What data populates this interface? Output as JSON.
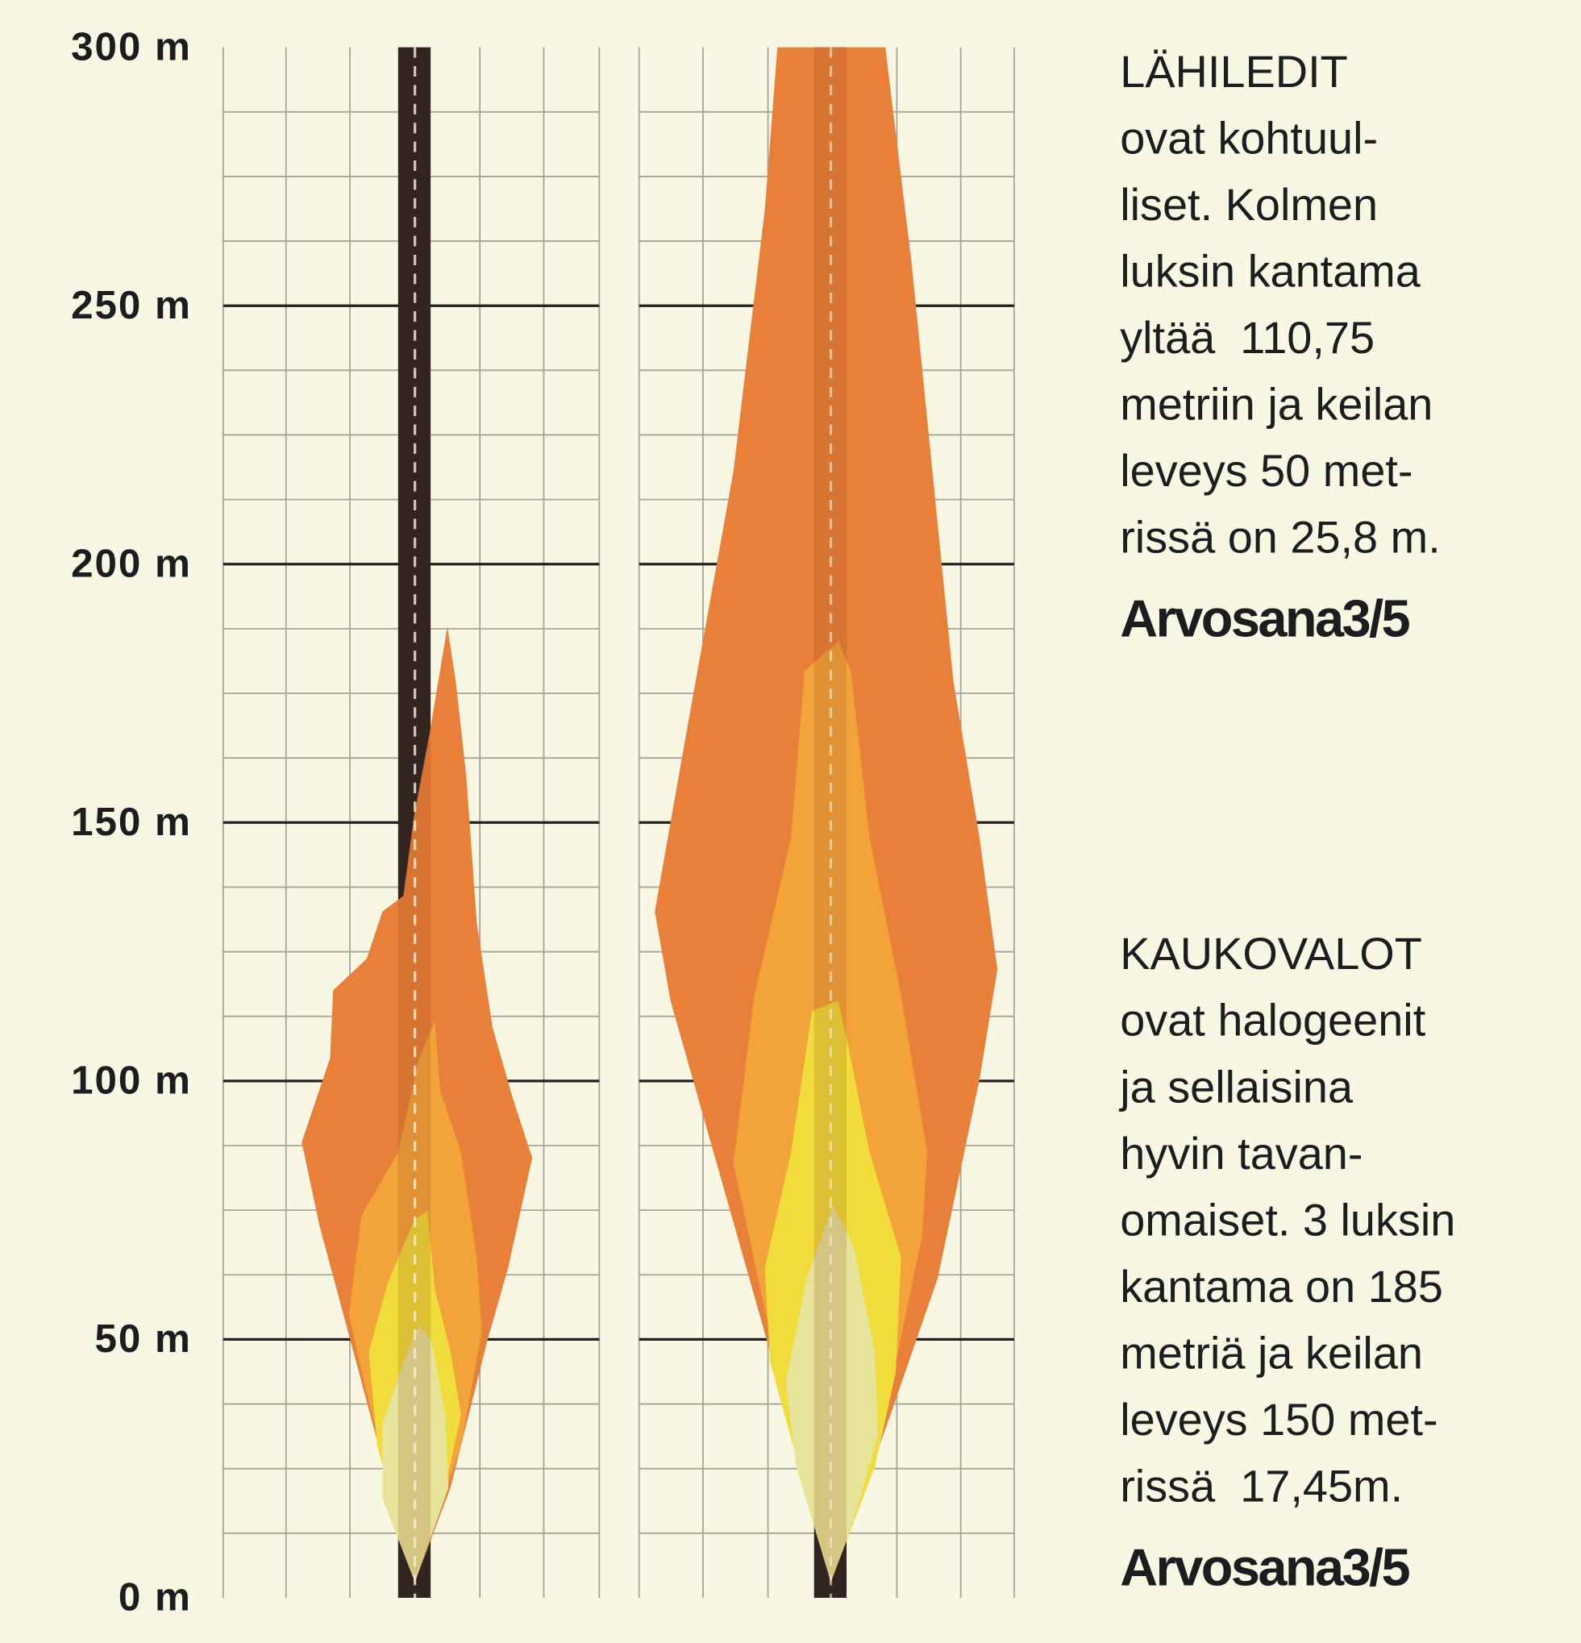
{
  "chart_data": {
    "type": "grid",
    "ylim": [
      0,
      300
    ],
    "yticks": [
      {
        "value": 0,
        "label": "0 m"
      },
      {
        "value": 50,
        "label": "50 m"
      },
      {
        "value": 100,
        "label": "100 m"
      },
      {
        "value": 150,
        "label": "150 m"
      },
      {
        "value": 200,
        "label": "200 m"
      },
      {
        "value": 250,
        "label": "250 m"
      },
      {
        "value": 300,
        "label": "300 m"
      }
    ],
    "yminorticks": [
      12.5,
      25,
      37.5,
      62.5,
      75,
      87.5,
      112.5,
      125,
      137.5,
      162.5,
      175,
      187.5,
      212.5,
      225,
      237.5,
      262.5,
      275,
      287.5
    ],
    "grid": true
  },
  "text_blocks": [
    {
      "heading": "LÄHILEDIT",
      "lines": [
        "ovat kohtuul-",
        "liset. Kolmen",
        "luksin kantama",
        "yltää  110,75",
        "metriin ja keilan",
        "leveys 50 met-",
        "rissä on 25,8 m."
      ],
      "rating": "Arvosana3/5"
    },
    {
      "heading": "KAUKOVALOT",
      "lines": [
        "ovat halogeenit",
        "ja sellaisina",
        "hyvin tavan-",
        "omaiset. 3 luksin",
        "kantama on 185",
        "metriä ja keilan",
        "leveys 150 met-",
        "rissä  17,45m."
      ],
      "rating": "Arvosana3/5"
    }
  ]
}
